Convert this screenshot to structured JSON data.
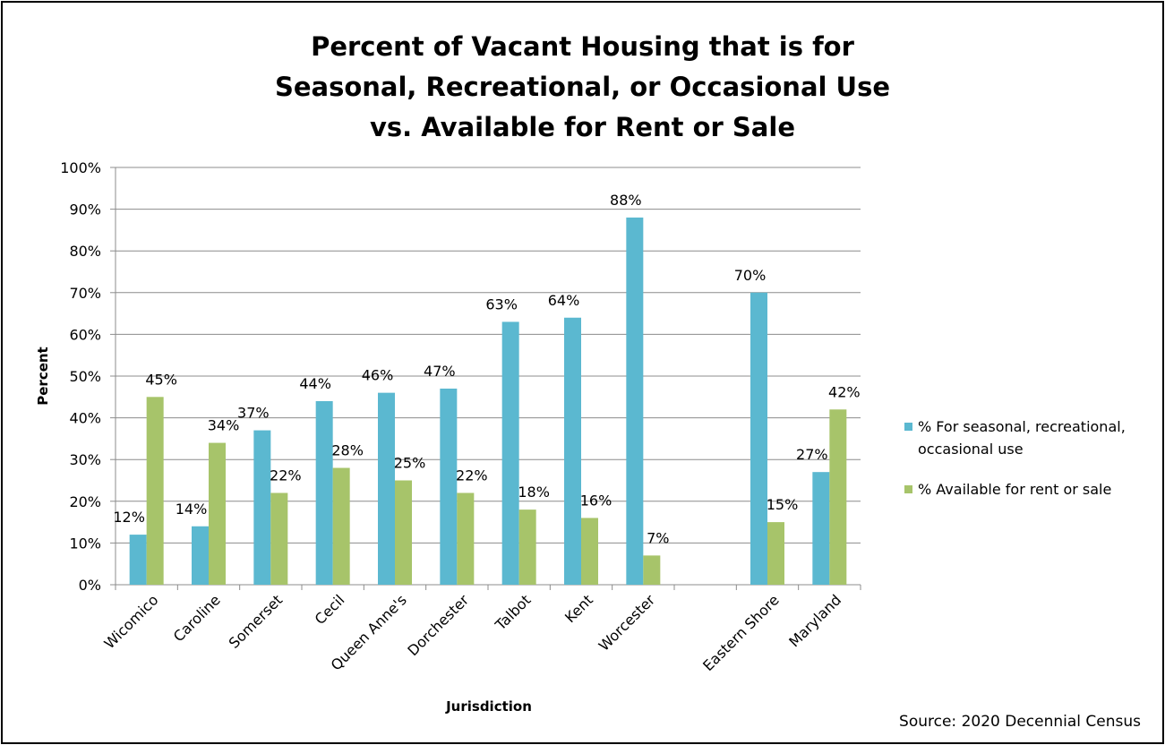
{
  "chart_data": {
    "type": "bar",
    "title_lines": [
      "Percent of Vacant Housing that is for",
      "Seasonal, Recreational, or Occasional Use",
      "vs. Available for Rent or Sale"
    ],
    "xlabel": "Jurisdiction",
    "ylabel": "Percent",
    "ylim": [
      0,
      100
    ],
    "yticks": [
      "0%",
      "10%",
      "20%",
      "30%",
      "40%",
      "50%",
      "60%",
      "70%",
      "80%",
      "90%",
      "100%"
    ],
    "grid": true,
    "legend_position": "right",
    "categories": [
      "Wicomico",
      "Caroline",
      "Somerset",
      "Cecil",
      "Queen Anne's",
      "Dorchester",
      "Talbot",
      "Kent",
      "Worcester",
      "",
      "Eastern Shore",
      "Maryland"
    ],
    "series": [
      {
        "name": "% For seasonal, recreational, occasional use",
        "legend_lines": [
          "% For seasonal, recreational,",
          "occasional use"
        ],
        "color": "#5bb8d0",
        "values": [
          12,
          14,
          37,
          44,
          46,
          47,
          63,
          64,
          88,
          null,
          70,
          27
        ],
        "labels": [
          "12%",
          "14%",
          "37%",
          "44%",
          "46%",
          "47%",
          "63%",
          "64%",
          "88%",
          "",
          "70%",
          "27%"
        ]
      },
      {
        "name": "% Available for rent or sale",
        "legend_lines": [
          "% Available for rent or sale"
        ],
        "color": "#a7c46a",
        "values": [
          45,
          34,
          22,
          28,
          25,
          22,
          18,
          16,
          7,
          null,
          15,
          42
        ],
        "labels": [
          "45%",
          "34%",
          "22%",
          "28%",
          "25%",
          "22%",
          "18%",
          "16%",
          "7%",
          "",
          "15%",
          "42%"
        ]
      }
    ]
  },
  "source_note": "Source: 2020 Decennial Census"
}
